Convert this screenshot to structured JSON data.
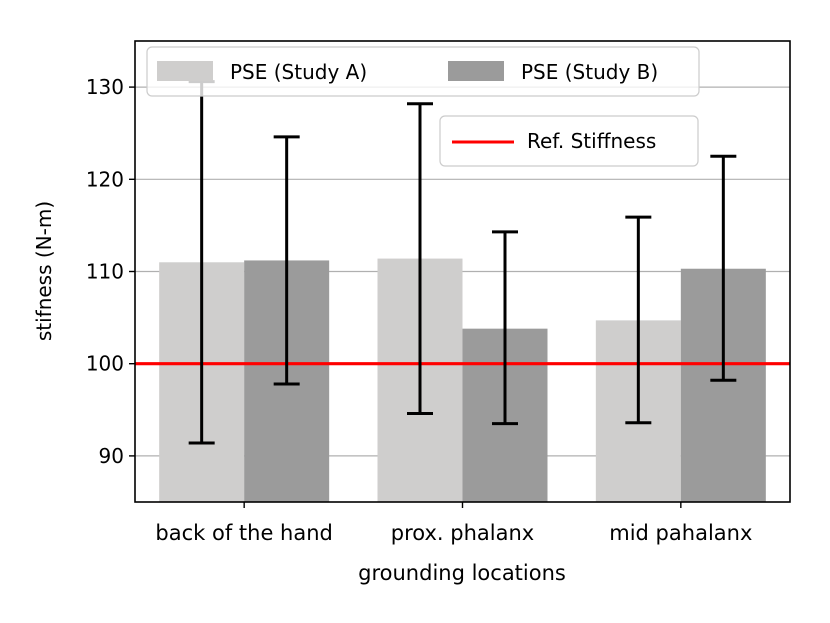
{
  "chart_data": {
    "type": "bar",
    "xlabel": "grounding locations",
    "ylabel": "stifness (N-m)",
    "categories": [
      "back of the hand",
      "prox. phalanx",
      "mid pahalanx"
    ],
    "ylim": [
      85,
      135
    ],
    "yticks": [
      90,
      100,
      110,
      120,
      130
    ],
    "grid": "horizontal",
    "series": [
      {
        "name": "PSE (Study A)",
        "color": "#cfcecd",
        "values": [
          111.0,
          111.4,
          104.7
        ],
        "err_low": [
          91.4,
          94.6,
          93.6
        ],
        "err_high": [
          130.6,
          128.2,
          115.9
        ]
      },
      {
        "name": "PSE (Study B)",
        "color": "#9b9b9b",
        "values": [
          111.2,
          103.8,
          110.3
        ],
        "err_low": [
          97.8,
          93.5,
          98.2
        ],
        "err_high": [
          124.6,
          114.3,
          122.5
        ]
      }
    ],
    "reference_line": {
      "name": "Ref. Stiffness",
      "value": 100,
      "color": "#ff0000"
    },
    "legend_series_placement": "top",
    "legend_ref_placement": "upper-right"
  }
}
